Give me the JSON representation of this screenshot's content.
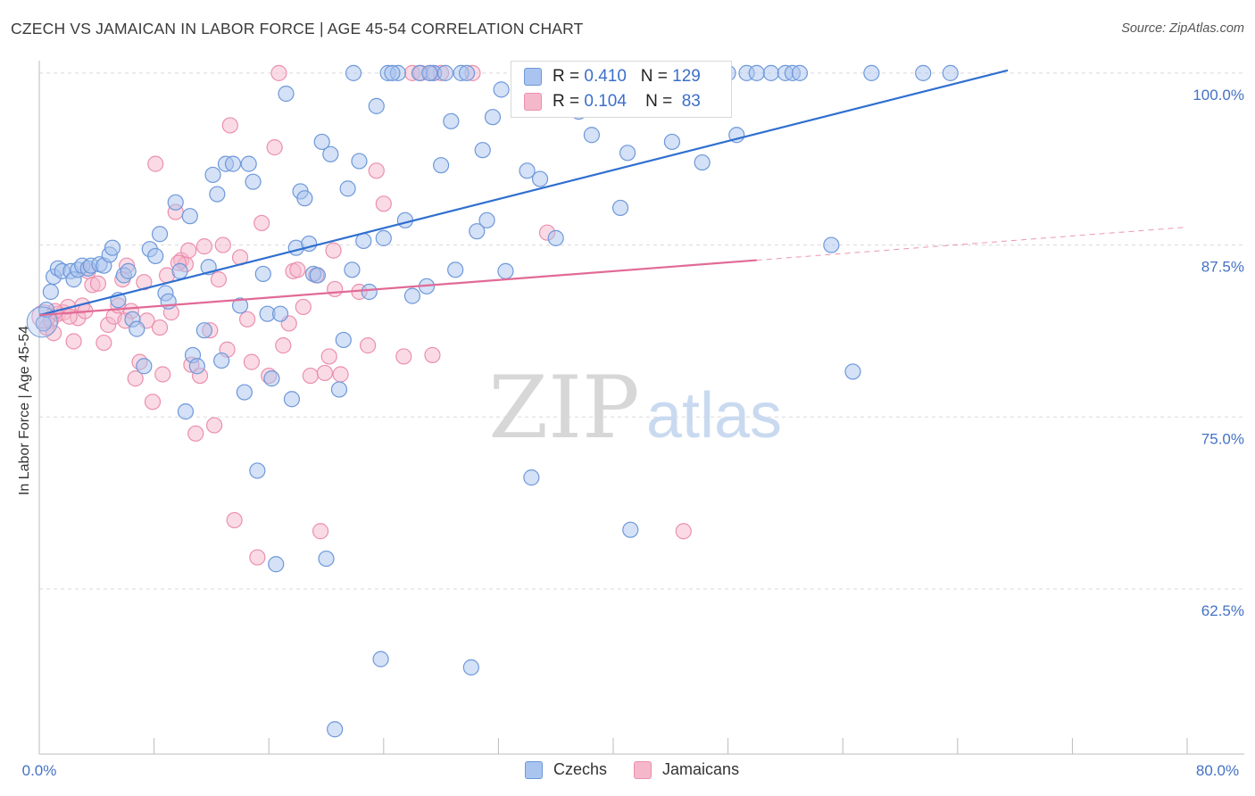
{
  "header": {
    "title": "CZECH VS JAMAICAN IN LABOR FORCE | AGE 45-54 CORRELATION CHART",
    "source": "Source: ZipAtlas.com"
  },
  "watermark": {
    "zip": "ZIP",
    "atlas": "atlas"
  },
  "legend": {
    "czech": {
      "r_label": "R =",
      "r_value": "0.410",
      "n_label": "N =",
      "n_value": "129"
    },
    "jamaican": {
      "r_label": "R =",
      "r_value": "0.104",
      "n_label": "N =",
      "n_value": "83"
    }
  },
  "bottom_legend": {
    "czech": "Czechs",
    "jamaican": "Jamaicans"
  },
  "colors": {
    "czech_fill": "#a9c4ee",
    "czech_stroke": "#6d98da",
    "czech_line": "#2f6fd0",
    "jamaican_fill": "#f5b8cb",
    "jamaican_stroke": "#eb8fad",
    "jamaican_line": "#e16a96",
    "tick_text": "#4472c4",
    "grid": "#d9d9d9"
  },
  "chart_data": {
    "type": "scatter",
    "title": "CZECH VS JAMAICAN IN LABOR FORCE | AGE 45-54 CORRELATION CHART",
    "xlabel": "",
    "ylabel": "In Labor Force | Age 45-54",
    "xlim": [
      0,
      80
    ],
    "ylim": [
      50.5,
      100.9
    ],
    "x_tick_labels": [
      "0.0%",
      "80.0%"
    ],
    "y_ticks": [
      62.5,
      75.0,
      87.5,
      100.0
    ],
    "y_tick_labels": [
      "62.5%",
      "75.0%",
      "87.5%",
      "100.0%"
    ],
    "grid": "horizontal dashed",
    "legend_position": "top-center",
    "series": [
      {
        "name": "Czechs",
        "r": 0.41,
        "n": 129,
        "trend": {
          "x": [
            0,
            67.5
          ],
          "y": [
            82.4,
            100.2
          ]
        },
        "points": [
          [
            0.3,
            81.8
          ],
          [
            0.5,
            82.8
          ],
          [
            0.8,
            84.1
          ],
          [
            1.0,
            85.2
          ],
          [
            1.3,
            85.8
          ],
          [
            1.6,
            85.6
          ],
          [
            2.2,
            85.6
          ],
          [
            2.4,
            85.0
          ],
          [
            2.7,
            85.7
          ],
          [
            3.0,
            86.0
          ],
          [
            3.4,
            85.8
          ],
          [
            3.6,
            86.0
          ],
          [
            4.2,
            86.1
          ],
          [
            4.5,
            86.0
          ],
          [
            4.9,
            86.8
          ],
          [
            5.1,
            87.3
          ],
          [
            5.5,
            83.5
          ],
          [
            5.9,
            85.3
          ],
          [
            6.2,
            85.6
          ],
          [
            6.5,
            82.1
          ],
          [
            6.8,
            81.4
          ],
          [
            7.3,
            78.7
          ],
          [
            7.7,
            87.2
          ],
          [
            8.1,
            86.7
          ],
          [
            8.4,
            88.3
          ],
          [
            8.8,
            84.0
          ],
          [
            9.0,
            83.4
          ],
          [
            9.5,
            90.6
          ],
          [
            9.8,
            85.6
          ],
          [
            10.2,
            75.4
          ],
          [
            10.5,
            89.6
          ],
          [
            10.7,
            79.5
          ],
          [
            11.0,
            78.7
          ],
          [
            11.5,
            81.3
          ],
          [
            11.8,
            85.9
          ],
          [
            12.1,
            92.6
          ],
          [
            12.4,
            91.2
          ],
          [
            12.7,
            79.1
          ],
          [
            13.0,
            93.4
          ],
          [
            13.5,
            93.4
          ],
          [
            14.0,
            83.1
          ],
          [
            14.3,
            76.8
          ],
          [
            14.6,
            93.4
          ],
          [
            14.9,
            92.1
          ],
          [
            15.2,
            71.1
          ],
          [
            15.6,
            85.4
          ],
          [
            15.9,
            82.5
          ],
          [
            16.2,
            77.8
          ],
          [
            16.5,
            64.3
          ],
          [
            16.8,
            82.5
          ],
          [
            17.2,
            98.5
          ],
          [
            17.6,
            76.3
          ],
          [
            17.9,
            87.3
          ],
          [
            18.2,
            91.4
          ],
          [
            18.5,
            90.9
          ],
          [
            18.8,
            87.6
          ],
          [
            19.1,
            85.4
          ],
          [
            19.4,
            85.3
          ],
          [
            19.7,
            95.0
          ],
          [
            20.0,
            64.7
          ],
          [
            20.3,
            94.1
          ],
          [
            20.6,
            52.3
          ],
          [
            20.9,
            77.0
          ],
          [
            21.2,
            80.6
          ],
          [
            21.5,
            91.6
          ],
          [
            21.8,
            85.7
          ],
          [
            22.3,
            93.6
          ],
          [
            22.6,
            87.8
          ],
          [
            23.0,
            84.1
          ],
          [
            23.5,
            97.6
          ],
          [
            23.8,
            57.4
          ],
          [
            24.0,
            88.0
          ],
          [
            24.3,
            100.0
          ],
          [
            25.0,
            100.0
          ],
          [
            25.5,
            89.3
          ],
          [
            26.0,
            83.8
          ],
          [
            26.5,
            100.0
          ],
          [
            27.0,
            84.5
          ],
          [
            27.5,
            100.0
          ],
          [
            28.0,
            93.3
          ],
          [
            28.3,
            100.0
          ],
          [
            28.7,
            96.5
          ],
          [
            29.0,
            85.7
          ],
          [
            29.4,
            100.0
          ],
          [
            30.1,
            56.8
          ],
          [
            30.5,
            88.5
          ],
          [
            30.9,
            94.4
          ],
          [
            31.2,
            89.3
          ],
          [
            31.6,
            96.8
          ],
          [
            32.2,
            98.8
          ],
          [
            32.5,
            85.6
          ],
          [
            33.5,
            100.0
          ],
          [
            34.0,
            92.9
          ],
          [
            34.3,
            70.6
          ],
          [
            34.9,
            92.3
          ],
          [
            35.6,
            100.0
          ],
          [
            36.0,
            88.0
          ],
          [
            37.0,
            100.0
          ],
          [
            37.6,
            97.2
          ],
          [
            38.0,
            100.0
          ],
          [
            38.5,
            95.5
          ],
          [
            40.2,
            100.0
          ],
          [
            40.5,
            90.2
          ],
          [
            41.0,
            94.2
          ],
          [
            41.2,
            66.8
          ],
          [
            42.0,
            100.0
          ],
          [
            43.0,
            100.0
          ],
          [
            44.1,
            95.0
          ],
          [
            45.5,
            100.0
          ],
          [
            45.9,
            97.7
          ],
          [
            46.2,
            93.5
          ],
          [
            48.0,
            100.0
          ],
          [
            48.6,
            95.5
          ],
          [
            49.3,
            100.0
          ],
          [
            51.0,
            100.0
          ],
          [
            52.0,
            100.0
          ],
          [
            52.5,
            100.0
          ],
          [
            53.0,
            100.0
          ],
          [
            55.2,
            87.5
          ],
          [
            56.7,
            78.3
          ],
          [
            58.0,
            100.0
          ],
          [
            61.6,
            100.0
          ],
          [
            63.5,
            100.0
          ],
          [
            24.6,
            100.0
          ],
          [
            27.2,
            100.0
          ],
          [
            21.9,
            100.0
          ],
          [
            45.0,
            100.0
          ],
          [
            50.0,
            100.0
          ],
          [
            29.8,
            100.0
          ]
        ]
      },
      {
        "name": "Jamaicans",
        "r": 0.104,
        "n": 83,
        "trend": {
          "x": [
            0,
            50.0
          ],
          "y": [
            82.4,
            86.4
          ]
        },
        "points": [
          [
            0.5,
            81.5
          ],
          [
            0.8,
            82.0
          ],
          [
            1.0,
            81.1
          ],
          [
            1.3,
            82.5
          ],
          [
            1.7,
            82.6
          ],
          [
            2.0,
            83.0
          ],
          [
            2.4,
            80.5
          ],
          [
            2.7,
            82.2
          ],
          [
            3.0,
            83.1
          ],
          [
            3.4,
            85.6
          ],
          [
            3.7,
            84.6
          ],
          [
            4.1,
            84.7
          ],
          [
            4.5,
            80.4
          ],
          [
            4.8,
            81.7
          ],
          [
            5.2,
            82.3
          ],
          [
            5.5,
            83.1
          ],
          [
            5.8,
            85.0
          ],
          [
            6.1,
            86.0
          ],
          [
            6.4,
            82.7
          ],
          [
            6.7,
            77.8
          ],
          [
            7.0,
            79.0
          ],
          [
            7.3,
            84.8
          ],
          [
            7.5,
            82.0
          ],
          [
            7.9,
            76.1
          ],
          [
            8.1,
            93.4
          ],
          [
            8.4,
            81.5
          ],
          [
            8.6,
            78.1
          ],
          [
            8.9,
            85.3
          ],
          [
            9.2,
            82.6
          ],
          [
            9.5,
            89.9
          ],
          [
            9.9,
            86.4
          ],
          [
            10.2,
            86.1
          ],
          [
            10.4,
            87.1
          ],
          [
            10.6,
            78.8
          ],
          [
            10.9,
            73.8
          ],
          [
            11.2,
            78.0
          ],
          [
            11.5,
            87.4
          ],
          [
            11.9,
            81.3
          ],
          [
            12.2,
            74.4
          ],
          [
            12.5,
            85.0
          ],
          [
            12.8,
            87.5
          ],
          [
            13.1,
            79.9
          ],
          [
            13.3,
            96.2
          ],
          [
            13.6,
            67.5
          ],
          [
            14.0,
            86.6
          ],
          [
            14.5,
            82.1
          ],
          [
            14.8,
            79.0
          ],
          [
            15.2,
            64.8
          ],
          [
            15.5,
            89.1
          ],
          [
            16.0,
            78.0
          ],
          [
            16.4,
            94.6
          ],
          [
            16.7,
            100.0
          ],
          [
            17.0,
            80.2
          ],
          [
            17.4,
            81.8
          ],
          [
            17.7,
            85.6
          ],
          [
            18.0,
            85.7
          ],
          [
            18.4,
            83.0
          ],
          [
            18.9,
            78.0
          ],
          [
            19.3,
            85.3
          ],
          [
            19.6,
            66.7
          ],
          [
            19.9,
            78.2
          ],
          [
            20.2,
            79.4
          ],
          [
            20.6,
            84.3
          ],
          [
            21.0,
            78.1
          ],
          [
            22.3,
            84.1
          ],
          [
            22.9,
            80.2
          ],
          [
            23.5,
            92.9
          ],
          [
            24.0,
            90.5
          ],
          [
            25.4,
            79.4
          ],
          [
            26.0,
            100.0
          ],
          [
            26.6,
            100.0
          ],
          [
            27.3,
            100.0
          ],
          [
            28.0,
            100.0
          ],
          [
            35.4,
            88.4
          ],
          [
            44.9,
            66.7
          ],
          [
            27.4,
            79.5
          ],
          [
            30.2,
            100.0
          ],
          [
            20.5,
            87.1
          ],
          [
            9.7,
            86.2
          ],
          [
            3.2,
            82.7
          ],
          [
            6.0,
            82.0
          ],
          [
            2.1,
            82.3
          ],
          [
            1.1,
            82.7
          ]
        ]
      }
    ]
  }
}
